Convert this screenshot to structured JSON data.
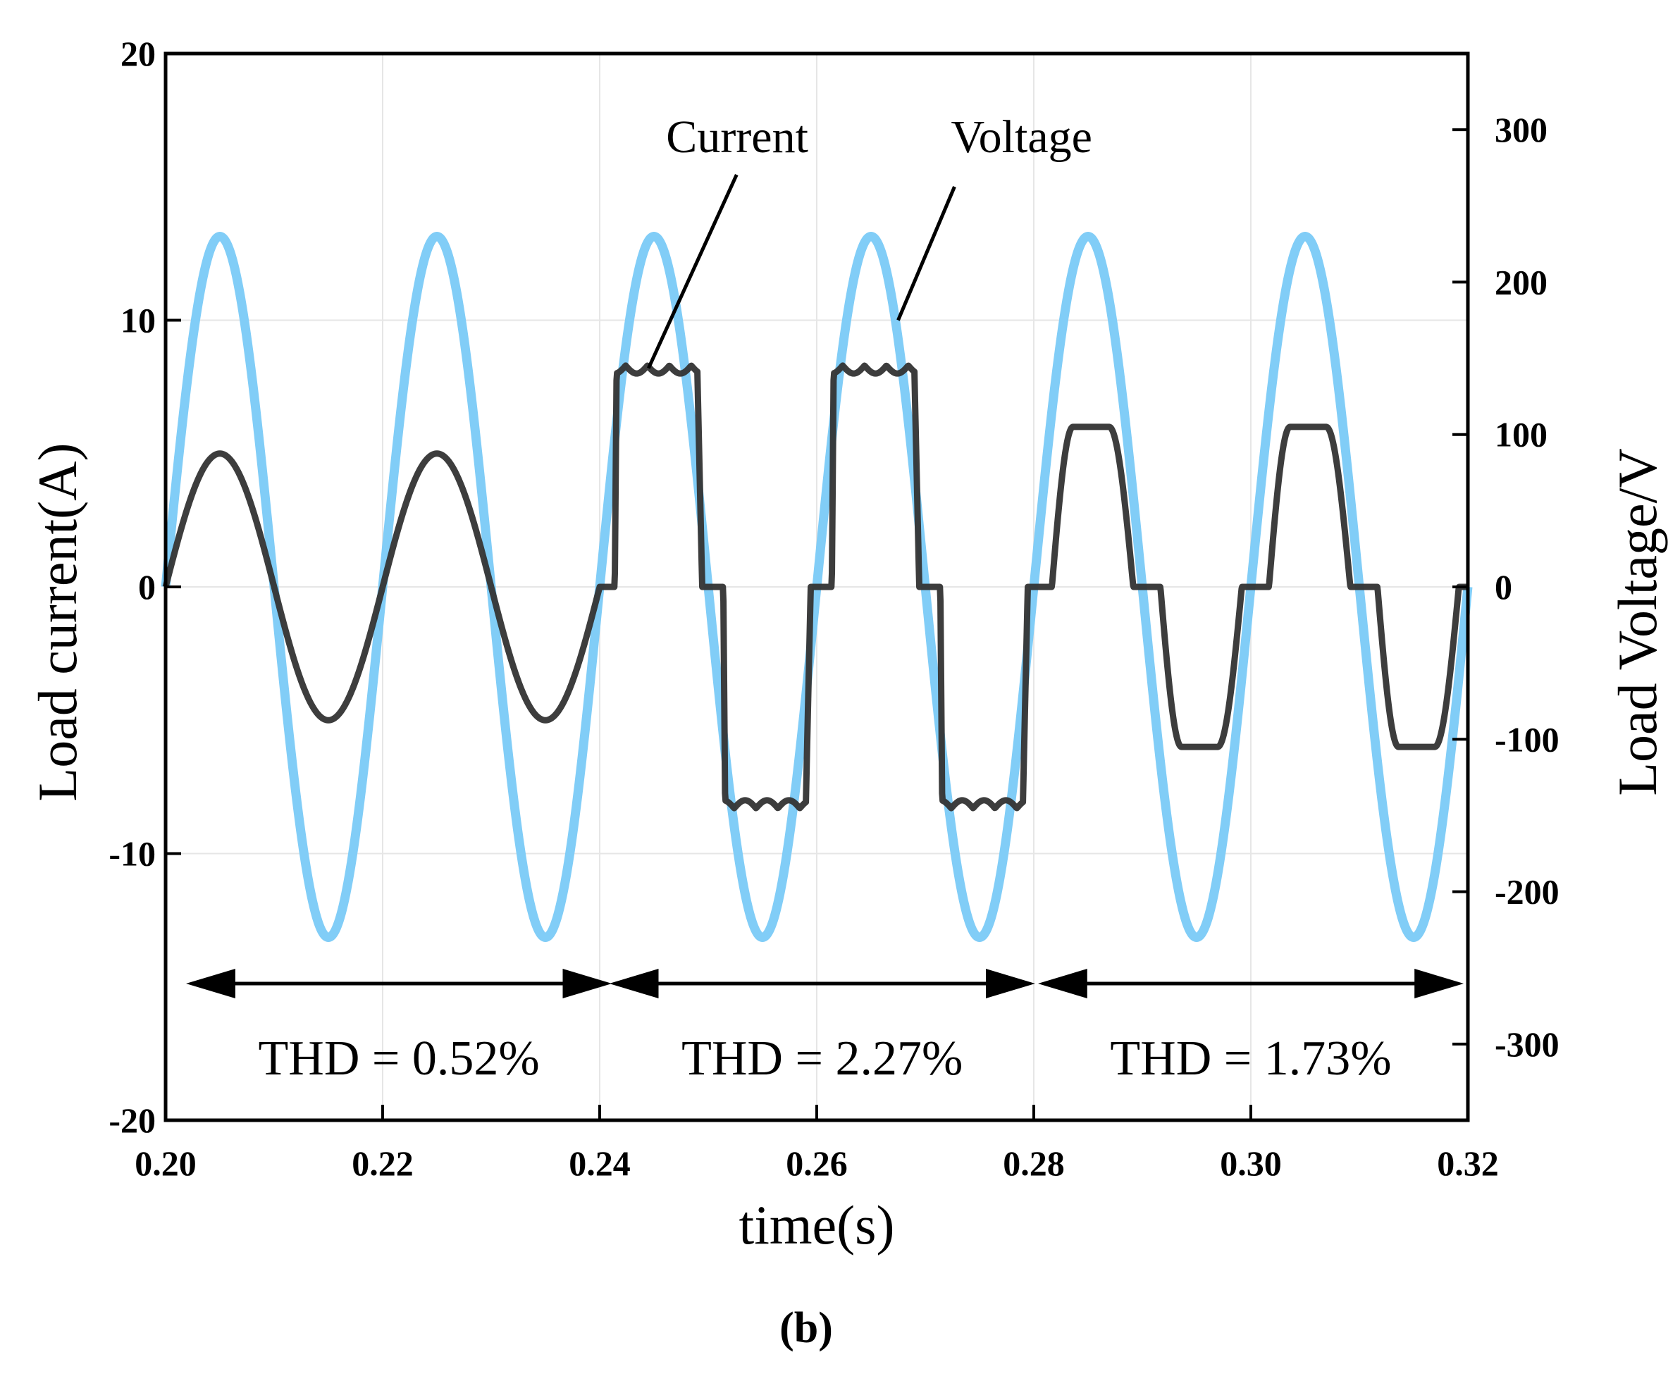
{
  "chart_data": {
    "type": "line",
    "xlabel": "time(s)",
    "ylabel_left": "Load current(A)",
    "ylabel_right": "Load Voltage/V",
    "xlim": [
      0.2,
      0.32
    ],
    "ylim_left": [
      -20,
      20
    ],
    "ylim_right": [
      -350,
      350
    ],
    "x_ticks": [
      "0.20",
      "0.22",
      "0.24",
      "0.26",
      "0.28",
      "0.30",
      "0.32"
    ],
    "y_left_ticks": [
      "20",
      "10",
      "0",
      "-10",
      "-20"
    ],
    "y_right_ticks": [
      "300",
      "200",
      "100",
      "0",
      "-100",
      "-200",
      "-300"
    ],
    "grid": true,
    "caption": "(b)",
    "colors": {
      "voltage": "#81CDF7",
      "current": "#333333",
      "axis": "#000000",
      "grid": "#e6e6e6"
    },
    "series": [
      {
        "name": "Voltage",
        "axis": "right",
        "description_values": "sinusoid 50 Hz, amplitude 230 V",
        "frequency_hz": 50,
        "amplitude": 230
      },
      {
        "name": "Current",
        "axis": "left",
        "segments": [
          {
            "x_start": 0.2,
            "x_end": 0.24,
            "shape": "sine",
            "amplitude": 5.0
          },
          {
            "x_start": 0.24,
            "x_end": 0.28,
            "shape": "rectifier-step",
            "amplitude": 8.3,
            "conduction_start_deg": 25,
            "conduction_end_deg": 170
          },
          {
            "x_start": 0.28,
            "x_end": 0.32,
            "shape": "rectifier-step-soft",
            "amplitude": 6.0,
            "conduction_start_deg": 30,
            "conduction_end_deg": 165
          }
        ]
      }
    ],
    "annotations": [
      {
        "label": "Current",
        "points_to": {
          "x": 0.2445,
          "y_left": 8.2
        }
      },
      {
        "label": "Voltage",
        "points_to": {
          "x": 0.2675,
          "y_right": 175
        }
      }
    ],
    "thd_labels": [
      {
        "text": "THD = 0.52%",
        "x_start": 0.2035,
        "x_end": 0.2395
      },
      {
        "text": "THD = 2.27%",
        "x_start": 0.2425,
        "x_end": 0.2785
      },
      {
        "text": "THD = 1.73%",
        "x_start": 0.282,
        "x_end": 0.318
      }
    ]
  }
}
